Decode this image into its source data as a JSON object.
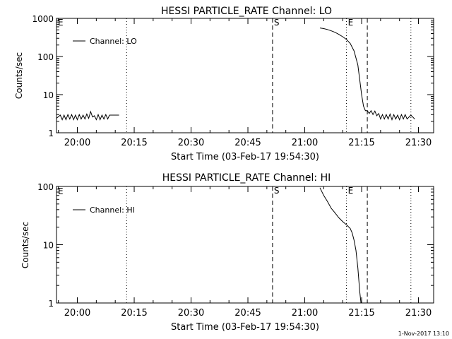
{
  "footer_timestamp": "1-Nov-2017 13:10",
  "chart_data": [
    {
      "type": "line",
      "title": "HESSI PARTICLE_RATE Channel: LO",
      "xlabel": "Start Time (03-Feb-17 19:54:30)",
      "ylabel": "Counts/sec",
      "y_scale": "log",
      "ylim": [
        1,
        1000
      ],
      "xlim": [
        "19:54:30",
        "21:34:00"
      ],
      "x_ticks": [
        "20:00",
        "20:15",
        "20:30",
        "20:45",
        "21:00",
        "21:15",
        "21:30"
      ],
      "y_ticks": [
        "1",
        "10",
        "100",
        "1000"
      ],
      "legend": {
        "label": "Channel: LO",
        "position": "top-left"
      },
      "markers": [
        {
          "label": "",
          "time": "20:13:00",
          "style": "dotted"
        },
        {
          "label": "S",
          "time": "20:51:30",
          "style": "dashed"
        },
        {
          "label": "E",
          "time": "21:11:00",
          "style": "dotted"
        },
        {
          "label": "",
          "time": "21:16:30",
          "style": "dashed"
        },
        {
          "label": "",
          "time": "21:28:00",
          "style": "dotted"
        }
      ],
      "corner_marker": "E",
      "series": [
        {
          "segments": [
            [
              [
                "19:54:30",
                2.4
              ],
              [
                "19:55:30",
                2.9
              ],
              [
                "19:56:00",
                2.2
              ],
              [
                "19:56:30",
                2.9
              ],
              [
                "19:57:00",
                2.2
              ],
              [
                "19:57:30",
                3.0
              ],
              [
                "19:58:00",
                2.3
              ],
              [
                "19:58:30",
                3.0
              ],
              [
                "19:59:00",
                2.2
              ],
              [
                "19:59:30",
                2.9
              ],
              [
                "20:00:00",
                2.2
              ],
              [
                "20:00:30",
                3.0
              ],
              [
                "20:01:00",
                2.3
              ],
              [
                "20:01:30",
                2.9
              ],
              [
                "20:02:00",
                2.3
              ],
              [
                "20:02:30",
                3.1
              ],
              [
                "20:03:00",
                2.4
              ],
              [
                "20:03:30",
                3.6
              ],
              [
                "20:04:00",
                2.6
              ],
              [
                "20:04:30",
                2.8
              ],
              [
                "20:05:00",
                2.2
              ],
              [
                "20:05:30",
                3.0
              ],
              [
                "20:06:00",
                2.2
              ],
              [
                "20:06:30",
                2.9
              ],
              [
                "20:07:00",
                2.3
              ],
              [
                "20:07:30",
                3.0
              ],
              [
                "20:08:00",
                2.3
              ],
              [
                "20:08:30",
                2.9
              ],
              [
                "20:09:00",
                2.9
              ],
              [
                "20:10:00",
                2.9
              ],
              [
                "20:11:00",
                2.9
              ]
            ],
            [
              [
                "21:04:00",
                560
              ],
              [
                "21:05:00",
                540
              ],
              [
                "21:06:00",
                510
              ],
              [
                "21:07:00",
                470
              ],
              [
                "21:08:00",
                430
              ],
              [
                "21:09:00",
                380
              ],
              [
                "21:10:00",
                330
              ],
              [
                "21:11:00",
                280
              ],
              [
                "21:12:00",
                220
              ],
              [
                "21:13:00",
                140
              ],
              [
                "21:14:00",
                60
              ],
              [
                "21:14:30",
                25
              ],
              [
                "21:15:00",
                10
              ],
              [
                "21:15:30",
                5
              ],
              [
                "21:16:00",
                3.8
              ],
              [
                "21:16:30",
                3.8
              ],
              [
                "21:17:00",
                3.2
              ],
              [
                "21:17:30",
                3.8
              ],
              [
                "21:18:00",
                3.0
              ],
              [
                "21:18:30",
                3.7
              ],
              [
                "21:19:00",
                2.8
              ],
              [
                "21:19:30",
                3.2
              ],
              [
                "21:20:00",
                2.3
              ],
              [
                "21:20:30",
                3.0
              ],
              [
                "21:21:00",
                2.3
              ],
              [
                "21:21:30",
                3.0
              ],
              [
                "21:22:00",
                2.3
              ],
              [
                "21:22:30",
                3.1
              ],
              [
                "21:23:00",
                2.2
              ],
              [
                "21:23:30",
                3.0
              ],
              [
                "21:24:00",
                2.3
              ],
              [
                "21:24:30",
                2.9
              ],
              [
                "21:25:00",
                2.2
              ],
              [
                "21:25:30",
                3.0
              ],
              [
                "21:26:00",
                2.3
              ],
              [
                "21:26:30",
                3.0
              ],
              [
                "21:27:00",
                2.3
              ],
              [
                "21:28:00",
                2.9
              ],
              [
                "21:29:00",
                2.3
              ]
            ]
          ]
        }
      ]
    },
    {
      "type": "line",
      "title": "HESSI PARTICLE_RATE Channel: HI",
      "xlabel": "Start Time (03-Feb-17 19:54:30)",
      "ylabel": "Counts/sec",
      "y_scale": "log",
      "ylim": [
        1,
        100
      ],
      "xlim": [
        "19:54:30",
        "21:34:00"
      ],
      "x_ticks": [
        "20:00",
        "20:15",
        "20:30",
        "20:45",
        "21:00",
        "21:15",
        "21:30"
      ],
      "y_ticks": [
        "1",
        "10",
        "100"
      ],
      "legend": {
        "label": "Channel: HI",
        "position": "top-left"
      },
      "markers": [
        {
          "label": "",
          "time": "20:13:00",
          "style": "dotted"
        },
        {
          "label": "S",
          "time": "20:51:30",
          "style": "dashed"
        },
        {
          "label": "E",
          "time": "21:11:00",
          "style": "dotted"
        },
        {
          "label": "",
          "time": "21:16:30",
          "style": "dashed"
        },
        {
          "label": "",
          "time": "21:28:00",
          "style": "dotted"
        }
      ],
      "corner_marker": "E",
      "series": [
        {
          "segments": [
            [
              [
                "21:04:00",
                95
              ],
              [
                "21:05:00",
                70
              ],
              [
                "21:06:00",
                55
              ],
              [
                "21:07:00",
                42
              ],
              [
                "21:08:00",
                35
              ],
              [
                "21:09:00",
                29
              ],
              [
                "21:10:00",
                25
              ],
              [
                "21:11:00",
                22
              ],
              [
                "21:12:00",
                19
              ],
              [
                "21:12:30",
                16
              ],
              [
                "21:13:00",
                12
              ],
              [
                "21:13:30",
                8
              ],
              [
                "21:14:00",
                4
              ],
              [
                "21:14:30",
                1.6
              ],
              [
                "21:14:50",
                1.0
              ]
            ]
          ]
        }
      ]
    }
  ]
}
